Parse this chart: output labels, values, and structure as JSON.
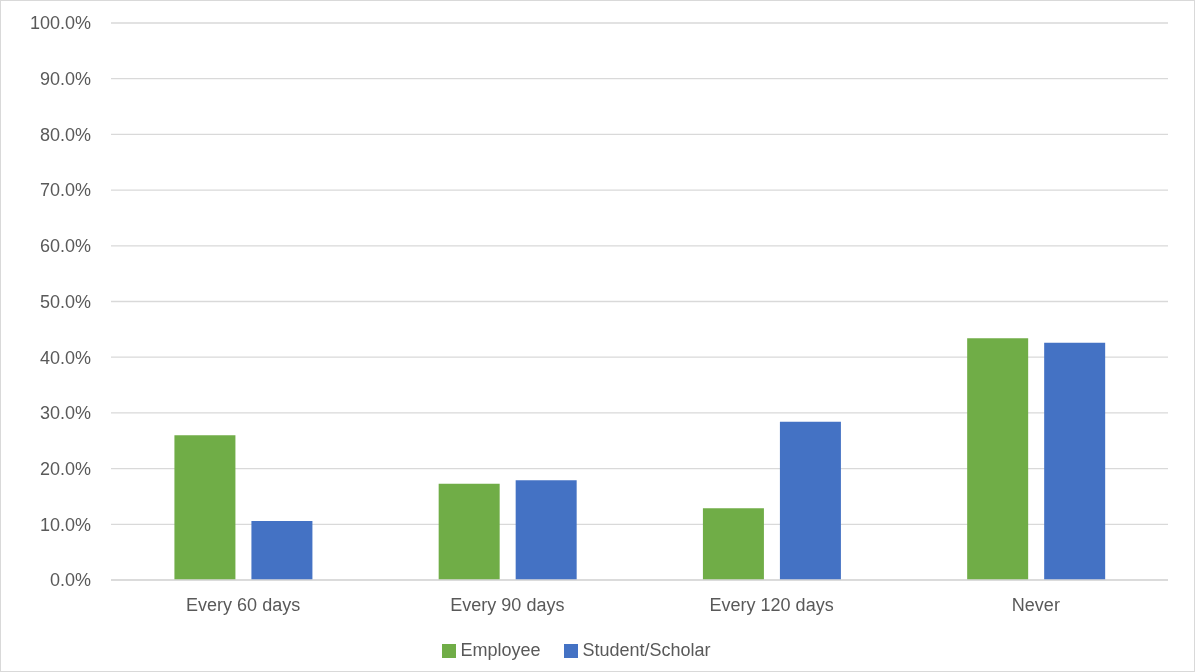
{
  "chart_data": {
    "type": "bar",
    "categories": [
      "Every 60 days",
      "Every 90 days",
      "Every 120 days",
      "Never"
    ],
    "series": [
      {
        "name": "Employee",
        "color": "#70ad47",
        "values": [
          26.0,
          17.3,
          12.9,
          43.4
        ]
      },
      {
        "name": "Student/Scholar",
        "color": "#4472c4",
        "values": [
          10.6,
          17.9,
          28.4,
          42.6
        ]
      }
    ],
    "ylim": [
      0,
      100
    ],
    "yticks": [
      {
        "value": 0,
        "label": "0.0%"
      },
      {
        "value": 10,
        "label": "10.0%"
      },
      {
        "value": 20,
        "label": "20.0%"
      },
      {
        "value": 30,
        "label": "30.0%"
      },
      {
        "value": 40,
        "label": "40.0%"
      },
      {
        "value": 50,
        "label": "50.0%"
      },
      {
        "value": 60,
        "label": "60.0%"
      },
      {
        "value": 70,
        "label": "70.0%"
      },
      {
        "value": 80,
        "label": "80.0%"
      },
      {
        "value": 90,
        "label": "90.0%"
      },
      {
        "value": 100,
        "label": "100.0%"
      }
    ],
    "grid": "y",
    "legend": "bottom"
  }
}
